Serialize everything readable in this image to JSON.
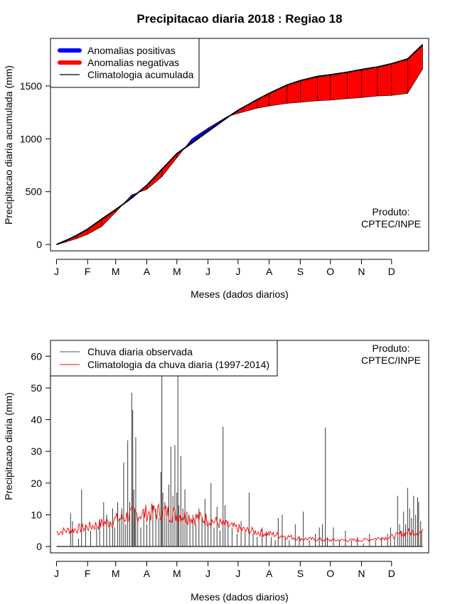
{
  "figure_title": "Precipitacao diaria 2018 : Regiao 18",
  "month_ticks": [
    "J",
    "F",
    "M",
    "A",
    "M",
    "J",
    "J",
    "A",
    "S",
    "O",
    "N",
    "D"
  ],
  "chart_data": [
    {
      "type": "area",
      "ylabel": "Precipitacao diaria acumulada (mm)",
      "xlabel": "Meses (dados diarios)",
      "ylim": [
        -60,
        1950
      ],
      "yticks": [
        0,
        500,
        1000,
        1500
      ],
      "xrange_days": [
        -6,
        371
      ],
      "note": [
        "Produto:",
        "CPTEC/INPE"
      ],
      "legend": {
        "position": "top-left",
        "entries": [
          {
            "label": "Anomalias positivas",
            "color": "#0000ff"
          },
          {
            "label": "Anomalias negativas",
            "color": "#ff0000"
          },
          {
            "label": "Climatologia acumulada",
            "color": "#000000"
          }
        ]
      },
      "cum_day": [
        0,
        10,
        20,
        31,
        45,
        59,
        75,
        90,
        105,
        120,
        135,
        151,
        170,
        181,
        200,
        212,
        230,
        243,
        260,
        273,
        290,
        304,
        320,
        334,
        350,
        365
      ],
      "climatology_cum": [
        0,
        40,
        85,
        145,
        240,
        330,
        440,
        560,
        710,
        860,
        960,
        1070,
        1200,
        1270,
        1370,
        1430,
        1510,
        1550,
        1590,
        1605,
        1630,
        1655,
        1680,
        1710,
        1755,
        1890
      ],
      "observed_cum": [
        0,
        25,
        55,
        95,
        170,
        305,
        470,
        520,
        640,
        820,
        1000,
        1100,
        1210,
        1240,
        1290,
        1310,
        1335,
        1345,
        1360,
        1365,
        1380,
        1390,
        1405,
        1410,
        1430,
        1660
      ],
      "climatology_color": "#000000",
      "positive_color": "#0000ff",
      "negative_color": "#ff0000"
    },
    {
      "type": "bar",
      "ylabel": "Precipitacao diaria (mm)",
      "xlabel": "Meses (dados diarios)",
      "ylim": [
        -2,
        65
      ],
      "yticks": [
        0,
        10,
        20,
        30,
        40,
        50,
        60
      ],
      "xrange_days": [
        -6,
        371
      ],
      "note": [
        "Produto:",
        "CPTEC/INPE"
      ],
      "legend": {
        "position": "top-left",
        "entries": [
          {
            "label": "Chuva diaria observada",
            "color": "#555555"
          },
          {
            "label": "Climatologia da chuva diaria (1997-2014)",
            "color": "#ff0000"
          }
        ]
      },
      "observed_daily_peaks": [
        {
          "day": 14,
          "mm": 10.5
        },
        {
          "day": 16,
          "mm": 8
        },
        {
          "day": 22,
          "mm": 2.5
        },
        {
          "day": 25,
          "mm": 18
        },
        {
          "day": 29,
          "mm": 7
        },
        {
          "day": 34,
          "mm": 5
        },
        {
          "day": 40,
          "mm": 6
        },
        {
          "day": 43,
          "mm": 8
        },
        {
          "day": 47,
          "mm": 14
        },
        {
          "day": 50,
          "mm": 10
        },
        {
          "day": 53,
          "mm": 8
        },
        {
          "day": 56,
          "mm": 12
        },
        {
          "day": 58,
          "mm": 6
        },
        {
          "day": 61,
          "mm": 14
        },
        {
          "day": 63,
          "mm": 9
        },
        {
          "day": 65,
          "mm": 12
        },
        {
          "day": 67,
          "mm": 26.5
        },
        {
          "day": 69,
          "mm": 7
        },
        {
          "day": 71,
          "mm": 33.5
        },
        {
          "day": 73,
          "mm": 14
        },
        {
          "day": 75,
          "mm": 48.5
        },
        {
          "day": 76,
          "mm": 43
        },
        {
          "day": 77,
          "mm": 18
        },
        {
          "day": 78,
          "mm": 12
        },
        {
          "day": 79,
          "mm": 34.5
        },
        {
          "day": 81,
          "mm": 9
        },
        {
          "day": 84,
          "mm": 6
        },
        {
          "day": 87,
          "mm": 11
        },
        {
          "day": 90,
          "mm": 7
        },
        {
          "day": 93,
          "mm": 10
        },
        {
          "day": 96,
          "mm": 13
        },
        {
          "day": 99,
          "mm": 12
        },
        {
          "day": 102,
          "mm": 9
        },
        {
          "day": 104,
          "mm": 23.5
        },
        {
          "day": 105,
          "mm": 54
        },
        {
          "day": 106,
          "mm": 17
        },
        {
          "day": 108,
          "mm": 14
        },
        {
          "day": 110,
          "mm": 9
        },
        {
          "day": 112,
          "mm": 19.5
        },
        {
          "day": 114,
          "mm": 31.5
        },
        {
          "day": 116,
          "mm": 16
        },
        {
          "day": 118,
          "mm": 32
        },
        {
          "day": 120,
          "mm": 17
        },
        {
          "day": 121,
          "mm": 54
        },
        {
          "day": 122,
          "mm": 13
        },
        {
          "day": 124,
          "mm": 28.5
        },
        {
          "day": 126,
          "mm": 12
        },
        {
          "day": 128,
          "mm": 18
        },
        {
          "day": 130,
          "mm": 11
        },
        {
          "day": 133,
          "mm": 8
        },
        {
          "day": 136,
          "mm": 10
        },
        {
          "day": 139,
          "mm": 7
        },
        {
          "day": 142,
          "mm": 12
        },
        {
          "day": 145,
          "mm": 9
        },
        {
          "day": 148,
          "mm": 15
        },
        {
          "day": 151,
          "mm": 8
        },
        {
          "day": 154,
          "mm": 20
        },
        {
          "day": 157,
          "mm": 6
        },
        {
          "day": 160,
          "mm": 12.5
        },
        {
          "day": 163,
          "mm": 5
        },
        {
          "day": 166,
          "mm": 37.8
        },
        {
          "day": 168,
          "mm": 13
        },
        {
          "day": 171,
          "mm": 8
        },
        {
          "day": 175,
          "mm": 6
        },
        {
          "day": 180,
          "mm": 4
        },
        {
          "day": 184,
          "mm": 8
        },
        {
          "day": 188,
          "mm": 5
        },
        {
          "day": 192,
          "mm": 17
        },
        {
          "day": 196,
          "mm": 4
        },
        {
          "day": 200,
          "mm": 3
        },
        {
          "day": 205,
          "mm": 6
        },
        {
          "day": 209,
          "mm": 4
        },
        {
          "day": 214,
          "mm": 3
        },
        {
          "day": 218,
          "mm": 2
        },
        {
          "day": 221,
          "mm": 9
        },
        {
          "day": 225,
          "mm": 10
        },
        {
          "day": 228,
          "mm": 3
        },
        {
          "day": 232,
          "mm": 2
        },
        {
          "day": 238,
          "mm": 7
        },
        {
          "day": 242,
          "mm": 3
        },
        {
          "day": 246,
          "mm": 11
        },
        {
          "day": 252,
          "mm": 2
        },
        {
          "day": 258,
          "mm": 4
        },
        {
          "day": 262,
          "mm": 6
        },
        {
          "day": 265,
          "mm": 7
        },
        {
          "day": 268,
          "mm": 37.5
        },
        {
          "day": 270,
          "mm": 3
        },
        {
          "day": 276,
          "mm": 6
        },
        {
          "day": 282,
          "mm": 2
        },
        {
          "day": 288,
          "mm": 5
        },
        {
          "day": 294,
          "mm": 2
        },
        {
          "day": 300,
          "mm": 3
        },
        {
          "day": 306,
          "mm": 1
        },
        {
          "day": 312,
          "mm": 4
        },
        {
          "day": 318,
          "mm": 2
        },
        {
          "day": 324,
          "mm": 3
        },
        {
          "day": 330,
          "mm": 4
        },
        {
          "day": 333,
          "mm": 6
        },
        {
          "day": 337,
          "mm": 3
        },
        {
          "day": 340,
          "mm": 16
        },
        {
          "day": 342,
          "mm": 7
        },
        {
          "day": 344,
          "mm": 5
        },
        {
          "day": 346,
          "mm": 11
        },
        {
          "day": 348,
          "mm": 7
        },
        {
          "day": 350,
          "mm": 18.5
        },
        {
          "day": 352,
          "mm": 12
        },
        {
          "day": 354,
          "mm": 9
        },
        {
          "day": 356,
          "mm": 16
        },
        {
          "day": 358,
          "mm": 10
        },
        {
          "day": 360,
          "mm": 15.5
        },
        {
          "day": 361,
          "mm": 14
        },
        {
          "day": 363,
          "mm": 8
        },
        {
          "day": 364,
          "mm": 5
        }
      ],
      "climatology_daily_profile": [
        {
          "day": 0,
          "mm": 4.5
        },
        {
          "day": 30,
          "mm": 6
        },
        {
          "day": 55,
          "mm": 8
        },
        {
          "day": 75,
          "mm": 10
        },
        {
          "day": 105,
          "mm": 11
        },
        {
          "day": 130,
          "mm": 9.5
        },
        {
          "day": 151,
          "mm": 8.5
        },
        {
          "day": 170,
          "mm": 6.5
        },
        {
          "day": 190,
          "mm": 5
        },
        {
          "day": 212,
          "mm": 4
        },
        {
          "day": 243,
          "mm": 2.5
        },
        {
          "day": 273,
          "mm": 2
        },
        {
          "day": 304,
          "mm": 2
        },
        {
          "day": 334,
          "mm": 3
        },
        {
          "day": 350,
          "mm": 4.5
        },
        {
          "day": 365,
          "mm": 4.5
        }
      ]
    }
  ]
}
